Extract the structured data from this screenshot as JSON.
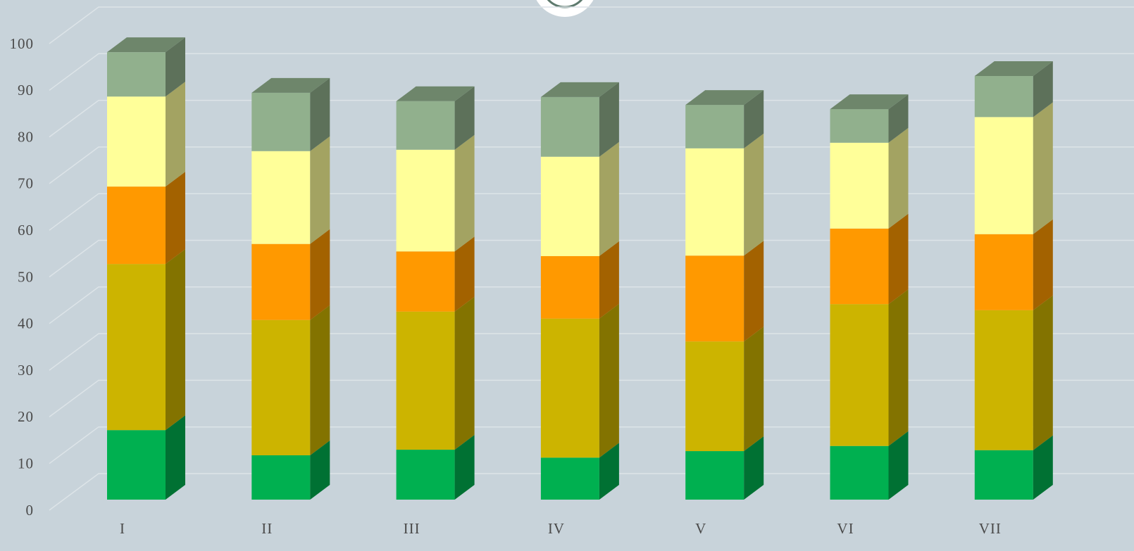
{
  "chart_data": {
    "type": "bar3d_stacked",
    "categories": [
      "I",
      "II",
      "III",
      "IV",
      "V",
      "VI",
      "VII"
    ],
    "series": [
      {
        "color": "#00b050",
        "values": [
          14.9,
          9.5,
          10.7,
          9.0,
          10.4,
          11.5,
          10.6
        ]
      },
      {
        "color": "#ccb400",
        "values": [
          35.6,
          29.0,
          29.6,
          29.8,
          23.5,
          30.4,
          30.0
        ]
      },
      {
        "color": "#ff9900",
        "values": [
          16.6,
          16.3,
          12.9,
          13.4,
          18.4,
          16.2,
          16.3
        ]
      },
      {
        "color": "#ffff99",
        "values": [
          19.3,
          19.9,
          21.8,
          21.3,
          23.0,
          18.4,
          25.1
        ]
      },
      {
        "color": "#91b08d",
        "values": [
          9.5,
          12.5,
          10.4,
          12.8,
          9.3,
          7.2,
          8.8
        ]
      }
    ],
    "ylim": [
      0,
      100
    ],
    "yticks": [
      0,
      10,
      20,
      30,
      40,
      50,
      60,
      70,
      80,
      90,
      100
    ],
    "grid": true
  }
}
